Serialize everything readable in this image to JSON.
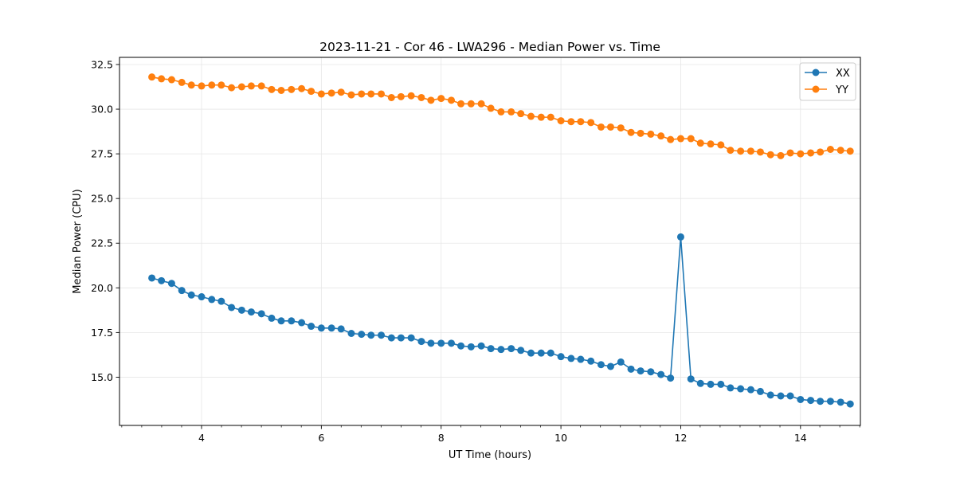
{
  "chart_data": {
    "type": "line",
    "title": "2023-11-21 - Cor 46 - LWA296 - Median Power vs. Time",
    "xlabel": "UT Time (hours)",
    "ylabel": "Median Power (CPU)",
    "xlim": [
      2.63,
      15.0
    ],
    "ylim": [
      12.3,
      32.9
    ],
    "xticks": [
      4,
      6,
      8,
      10,
      12,
      14
    ],
    "xtick_labels": [
      "4",
      "6",
      "8",
      "10",
      "12",
      "14"
    ],
    "xminor_step": 0.333,
    "yticks": [
      15.0,
      17.5,
      20.0,
      22.5,
      25.0,
      27.5,
      30.0,
      32.5
    ],
    "ytick_labels": [
      "15.0",
      "17.5",
      "20.0",
      "22.5",
      "25.0",
      "27.5",
      "30.0",
      "32.5"
    ],
    "grid": true,
    "legend_position": "top-right",
    "x": [
      3.17,
      3.33,
      3.5,
      3.67,
      3.83,
      4.0,
      4.17,
      4.33,
      4.5,
      4.67,
      4.83,
      5.0,
      5.17,
      5.33,
      5.5,
      5.67,
      5.83,
      6.0,
      6.17,
      6.33,
      6.5,
      6.67,
      6.83,
      7.0,
      7.17,
      7.33,
      7.5,
      7.67,
      7.83,
      8.0,
      8.17,
      8.33,
      8.5,
      8.67,
      8.83,
      9.0,
      9.17,
      9.33,
      9.5,
      9.67,
      9.83,
      10.0,
      10.17,
      10.33,
      10.5,
      10.67,
      10.83,
      11.0,
      11.17,
      11.33,
      11.5,
      11.67,
      11.83,
      12.0,
      12.17,
      12.33,
      12.5,
      12.67,
      12.83,
      13.0,
      13.17,
      13.33,
      13.5,
      13.67,
      13.83,
      14.0,
      14.17,
      14.33,
      14.5,
      14.67,
      14.83
    ],
    "series": [
      {
        "name": "XX",
        "color": "#1f77b4",
        "values": [
          20.55,
          20.4,
          20.25,
          19.85,
          19.6,
          19.5,
          19.35,
          19.25,
          18.9,
          18.75,
          18.65,
          18.55,
          18.3,
          18.15,
          18.15,
          18.05,
          17.85,
          17.75,
          17.75,
          17.7,
          17.45,
          17.4,
          17.35,
          17.35,
          17.2,
          17.2,
          17.2,
          17.0,
          16.9,
          16.9,
          16.9,
          16.75,
          16.7,
          16.75,
          16.6,
          16.55,
          16.6,
          16.5,
          16.35,
          16.35,
          16.35,
          16.15,
          16.05,
          16.0,
          15.9,
          15.7,
          15.6,
          15.85,
          15.45,
          15.35,
          15.3,
          15.15,
          14.95,
          22.85,
          14.9,
          14.65,
          14.6,
          14.6,
          14.4,
          14.35,
          14.3,
          14.2,
          14.0,
          13.95,
          13.95,
          13.75,
          13.7,
          13.65,
          13.65,
          13.6,
          13.5
        ]
      },
      {
        "name": "YY",
        "color": "#ff7f0e",
        "values": [
          31.8,
          31.7,
          31.65,
          31.5,
          31.35,
          31.3,
          31.35,
          31.35,
          31.2,
          31.25,
          31.3,
          31.3,
          31.1,
          31.05,
          31.1,
          31.15,
          31.0,
          30.85,
          30.9,
          30.95,
          30.8,
          30.85,
          30.85,
          30.85,
          30.65,
          30.7,
          30.75,
          30.65,
          30.5,
          30.6,
          30.5,
          30.3,
          30.3,
          30.3,
          30.05,
          29.85,
          29.85,
          29.75,
          29.6,
          29.55,
          29.55,
          29.35,
          29.3,
          29.3,
          29.25,
          29.0,
          29.0,
          28.95,
          28.7,
          28.65,
          28.6,
          28.5,
          28.3,
          28.35,
          28.35,
          28.1,
          28.05,
          28.0,
          27.7,
          27.65,
          27.65,
          27.6,
          27.45,
          27.4,
          27.55,
          27.5,
          27.55,
          27.6,
          27.75,
          27.7,
          27.65
        ]
      }
    ]
  }
}
